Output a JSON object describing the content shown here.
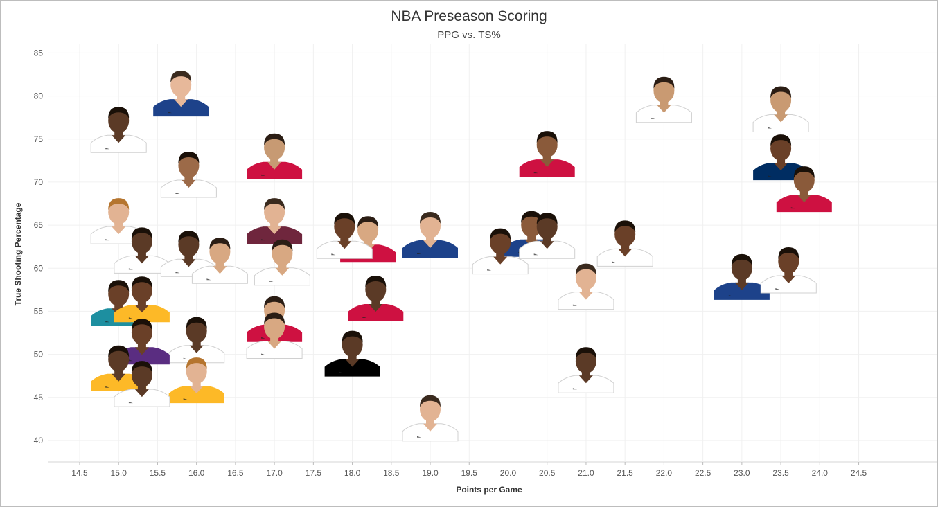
{
  "chart_data": {
    "type": "scatter",
    "title": "NBA Preseason Scoring",
    "subtitle": "PPG vs. TS%",
    "xlabel": "Points per Game",
    "ylabel": "True Shooting Percentage",
    "xlim": [
      14.1,
      25.5
    ],
    "ylim": [
      37.5,
      86
    ],
    "xticks": [
      "14.5",
      "15.0",
      "15.5",
      "16.0",
      "16.5",
      "17.0",
      "17.5",
      "18.0",
      "18.5",
      "19.0",
      "19.5",
      "20.0",
      "20.5",
      "21.0",
      "21.5",
      "22.0",
      "22.5",
      "23.0",
      "23.5",
      "24.0",
      "24.5"
    ],
    "yticks": [
      "40",
      "45",
      "50",
      "55",
      "60",
      "65",
      "70",
      "75",
      "80",
      "85"
    ],
    "grid": true,
    "marker": "player-headshot",
    "points": [
      {
        "x": 15.8,
        "y": 79.8,
        "jersey": "#1d428a",
        "skin": "#e7b89a",
        "hair": "#3a2a1e"
      },
      {
        "x": 22.0,
        "y": 79.1,
        "jersey": "#ffffff",
        "skin": "#c99a72",
        "hair": "#2b1d14"
      },
      {
        "x": 23.5,
        "y": 78.0,
        "jersey": "#ffffff",
        "skin": "#c99a72",
        "hair": "#2b1d14"
      },
      {
        "x": 15.0,
        "y": 75.6,
        "jersey": "#ffffff",
        "skin": "#5b3a26",
        "hair": "#1a1008"
      },
      {
        "x": 17.0,
        "y": 72.5,
        "jersey": "#ce1141",
        "skin": "#c79a73",
        "hair": "#2b1d14"
      },
      {
        "x": 20.5,
        "y": 72.8,
        "jersey": "#ce1141",
        "skin": "#8a5a3a",
        "hair": "#1a1008"
      },
      {
        "x": 23.5,
        "y": 72.4,
        "jersey": "#002d62",
        "skin": "#6a4028",
        "hair": "#1a1008"
      },
      {
        "x": 15.9,
        "y": 70.4,
        "jersey": "#ffffff",
        "skin": "#9c6a48",
        "hair": "#1a1008"
      },
      {
        "x": 23.8,
        "y": 68.7,
        "jersey": "#ce1141",
        "skin": "#8a5a3a",
        "hair": "#1a1008"
      },
      {
        "x": 15.0,
        "y": 65.0,
        "jersey": "#ffffff",
        "skin": "#e2b393",
        "hair": "#b5752f"
      },
      {
        "x": 17.0,
        "y": 65.0,
        "jersey": "#6f263d",
        "skin": "#e2b393",
        "hair": "#3a2a1e"
      },
      {
        "x": 20.3,
        "y": 63.5,
        "jersey": "#1d428a",
        "skin": "#8a5a3a",
        "hair": "#1a1008"
      },
      {
        "x": 18.2,
        "y": 62.9,
        "jersey": "#ce1141",
        "skin": "#d8a882",
        "hair": "#2b1d14"
      },
      {
        "x": 17.9,
        "y": 63.3,
        "jersey": "#ffffff",
        "skin": "#6a4028",
        "hair": "#1a1008"
      },
      {
        "x": 19.0,
        "y": 63.4,
        "jersey": "#1d428a",
        "skin": "#e2b393",
        "hair": "#3a2a1e"
      },
      {
        "x": 20.5,
        "y": 63.3,
        "jersey": "#ffffff",
        "skin": "#5b3a26",
        "hair": "#1a1008"
      },
      {
        "x": 15.3,
        "y": 61.6,
        "jersey": "#ffffff",
        "skin": "#5b3a26",
        "hair": "#1a1008"
      },
      {
        "x": 15.9,
        "y": 61.2,
        "jersey": "#ffffff",
        "skin": "#5b3a26",
        "hair": "#1a1008"
      },
      {
        "x": 21.5,
        "y": 62.4,
        "jersey": "#ffffff",
        "skin": "#6a4028",
        "hair": "#1a1008"
      },
      {
        "x": 16.3,
        "y": 60.4,
        "jersey": "#ffffff",
        "skin": "#d8a882",
        "hair": "#2b1d14"
      },
      {
        "x": 19.9,
        "y": 61.5,
        "jersey": "#ffffff",
        "skin": "#6a4028",
        "hair": "#1a1008"
      },
      {
        "x": 17.1,
        "y": 60.2,
        "jersey": "#ffffff",
        "skin": "#d8a882",
        "hair": "#2b1d14"
      },
      {
        "x": 23.0,
        "y": 58.5,
        "jersey": "#1d428a",
        "skin": "#5b3a26",
        "hair": "#1a1008"
      },
      {
        "x": 23.6,
        "y": 59.3,
        "jersey": "#ffffff",
        "skin": "#6a4028",
        "hair": "#1a1008"
      },
      {
        "x": 21.0,
        "y": 57.4,
        "jersey": "#ffffff",
        "skin": "#e2b393",
        "hair": "#3a2a1e"
      },
      {
        "x": 15.0,
        "y": 55.5,
        "jersey": "#1d8fa0",
        "skin": "#6a4028",
        "hair": "#1a1008"
      },
      {
        "x": 15.3,
        "y": 55.9,
        "jersey": "#fdb927",
        "skin": "#6a4028",
        "hair": "#1a1008"
      },
      {
        "x": 18.3,
        "y": 56.0,
        "jersey": "#ce1141",
        "skin": "#5b3a26",
        "hair": "#1a1008"
      },
      {
        "x": 17.0,
        "y": 53.6,
        "jersey": "#ce1141",
        "skin": "#d8a882",
        "hair": "#2b1d14"
      },
      {
        "x": 17.0,
        "y": 51.7,
        "jersey": "#ffffff",
        "skin": "#d8a882",
        "hair": "#2b1d14"
      },
      {
        "x": 16.0,
        "y": 51.2,
        "jersey": "#ffffff",
        "skin": "#5b3a26",
        "hair": "#1a1008"
      },
      {
        "x": 15.3,
        "y": 51.0,
        "jersey": "#5a2d81",
        "skin": "#6a4028",
        "hair": "#1a1008"
      },
      {
        "x": 18.0,
        "y": 49.6,
        "jersey": "#000000",
        "skin": "#5b3a26",
        "hair": "#1a1008"
      },
      {
        "x": 15.0,
        "y": 47.9,
        "jersey": "#fdb927",
        "skin": "#5b3a26",
        "hair": "#1a1008"
      },
      {
        "x": 16.0,
        "y": 46.5,
        "jersey": "#fdb927",
        "skin": "#e2b393",
        "hair": "#b5752f"
      },
      {
        "x": 15.3,
        "y": 46.1,
        "jersey": "#ffffff",
        "skin": "#5b3a26",
        "hair": "#1a1008"
      },
      {
        "x": 21.0,
        "y": 47.7,
        "jersey": "#ffffff",
        "skin": "#5b3a26",
        "hair": "#1a1008"
      },
      {
        "x": 19.0,
        "y": 42.1,
        "jersey": "#ffffff",
        "skin": "#e2b393",
        "hair": "#3a2a1e"
      }
    ]
  }
}
